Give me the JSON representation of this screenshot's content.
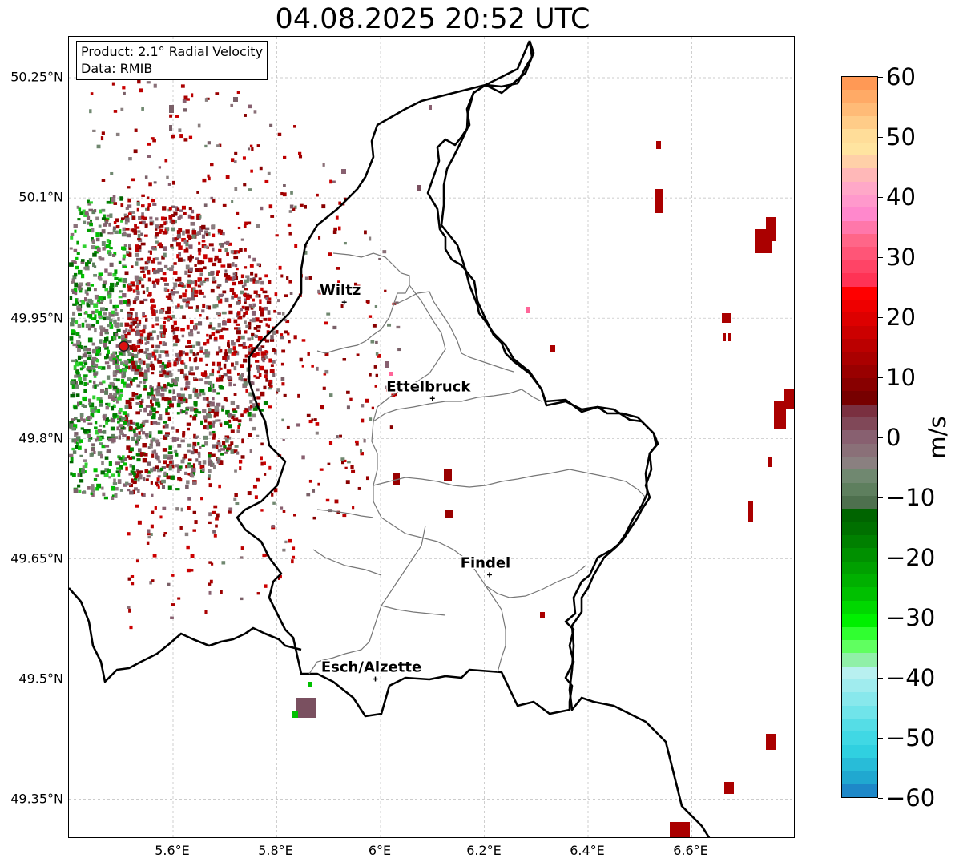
{
  "title": "04.08.2025 20:52 UTC",
  "info": {
    "product": "Product: 2.1° Radial Velocity",
    "data": "Data: RMIB"
  },
  "axes": {
    "lat_ticks": [
      "50.25°N",
      "50.1°N",
      "49.95°N",
      "49.8°N",
      "49.65°N",
      "49.5°N",
      "49.35°N"
    ],
    "lon_ticks": [
      "5.6°E",
      "5.8°E",
      "6°E",
      "6.2°E",
      "6.4°E",
      "6.6°E"
    ]
  },
  "cities": [
    {
      "name": "Wiltz",
      "lon": 5.93,
      "lat": 49.97
    },
    {
      "name": "Ettelbruck",
      "lon": 6.1,
      "lat": 49.85
    },
    {
      "name": "Findel",
      "lon": 6.21,
      "lat": 49.63
    },
    {
      "name": "Esch/Alzette",
      "lon": 5.99,
      "lat": 49.5
    }
  ],
  "radar_site": {
    "lon": 5.505,
    "lat": 49.915
  },
  "colorbar": {
    "ticks": [
      "60",
      "50",
      "40",
      "30",
      "20",
      "10",
      "0",
      "−10",
      "−20",
      "−30",
      "−40",
      "−50",
      "−60"
    ],
    "unit": "m/s",
    "range": [
      -60,
      60
    ],
    "colors_top_to_bottom": [
      "#ff9955",
      "#ffaa66",
      "#ffbb77",
      "#ffcc88",
      "#ffdd99",
      "#ffe4a0",
      "#ffd0a8",
      "#ffb8b8",
      "#ffa8c8",
      "#ff99cc",
      "#ff88cc",
      "#ff77aa",
      "#ff6688",
      "#ff5577",
      "#ff4466",
      "#ff3355",
      "#ff0000",
      "#ee0000",
      "#dd0000",
      "#cc0000",
      "#bb0000",
      "#aa0000",
      "#990000",
      "#880000",
      "#770000",
      "#7a3040",
      "#804858",
      "#886070",
      "#8a7078",
      "#8a8080",
      "#708870",
      "#5e7f5e",
      "#4e704e",
      "#006400",
      "#007000",
      "#008000",
      "#009000",
      "#00a000",
      "#00b000",
      "#00c000",
      "#00d800",
      "#00f000",
      "#30ff30",
      "#60ff60",
      "#90f0a8",
      "#b8f0f0",
      "#a0ecee",
      "#88e8ec",
      "#70e4ea",
      "#55dde6",
      "#40d8e4",
      "#30d0e0",
      "#28bcd8",
      "#20a8d0",
      "#1e88c8"
    ]
  }
}
